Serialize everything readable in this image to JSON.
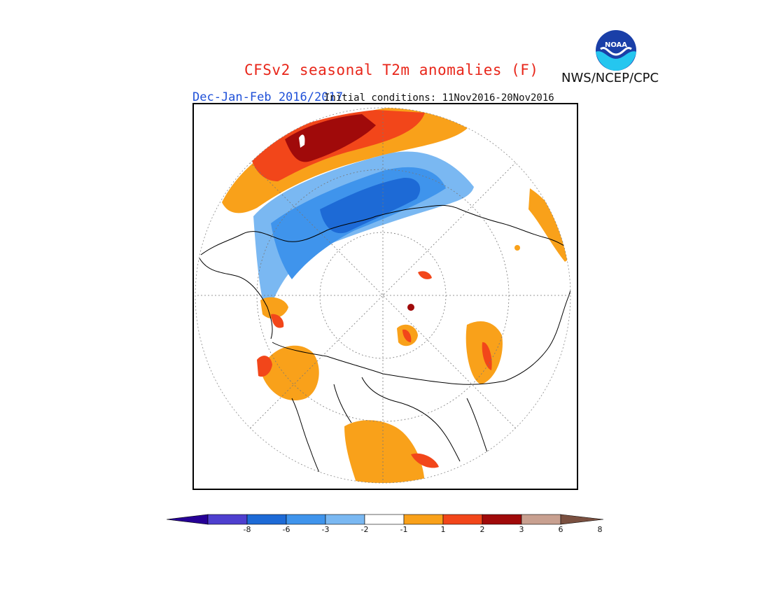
{
  "title": "CFSv2 seasonal T2m anomalies (F)",
  "season": "Dec-Jan-Feb 2016/2017",
  "initial_conditions": "Initial conditions: 11Nov2016-20Nov2016",
  "agency": "NWS/NCEP/CPC",
  "logo": {
    "icon": "noaa-logo",
    "text": "NOAA"
  },
  "map": {
    "projection": "north-polar-stereographic",
    "field": "T2m anomaly (F)",
    "regions": [
      {
        "name": "north-pacific-warm",
        "level": "2 to 3",
        "color": "#f39c12"
      },
      {
        "name": "north-pacific-core",
        "level": "3 to 6",
        "color": "#a00000"
      },
      {
        "name": "north-asia-cold",
        "level": "-3 to -6",
        "color": "#1d6ad6"
      },
      {
        "name": "eastern-europe-warm",
        "level": "1 to 2",
        "color": "#f39c12"
      },
      {
        "name": "north-america-warm",
        "level": "1 to 2",
        "color": "#f39c12"
      },
      {
        "name": "greenland-warm",
        "level": "1 to 2",
        "color": "#f39c12"
      }
    ]
  },
  "colorbar": {
    "colors": [
      "#260096",
      "#4e3fcf",
      "#1d6ad6",
      "#3f94ec",
      "#7ab8f2",
      "#ffffff",
      "#f9a11a",
      "#f2461a",
      "#a00a0a",
      "#c8a090",
      "#7a5040"
    ],
    "ticks": [
      "-8",
      "-6",
      "-3",
      "-2",
      "-1",
      "1",
      "2",
      "3",
      "6",
      "8"
    ]
  }
}
